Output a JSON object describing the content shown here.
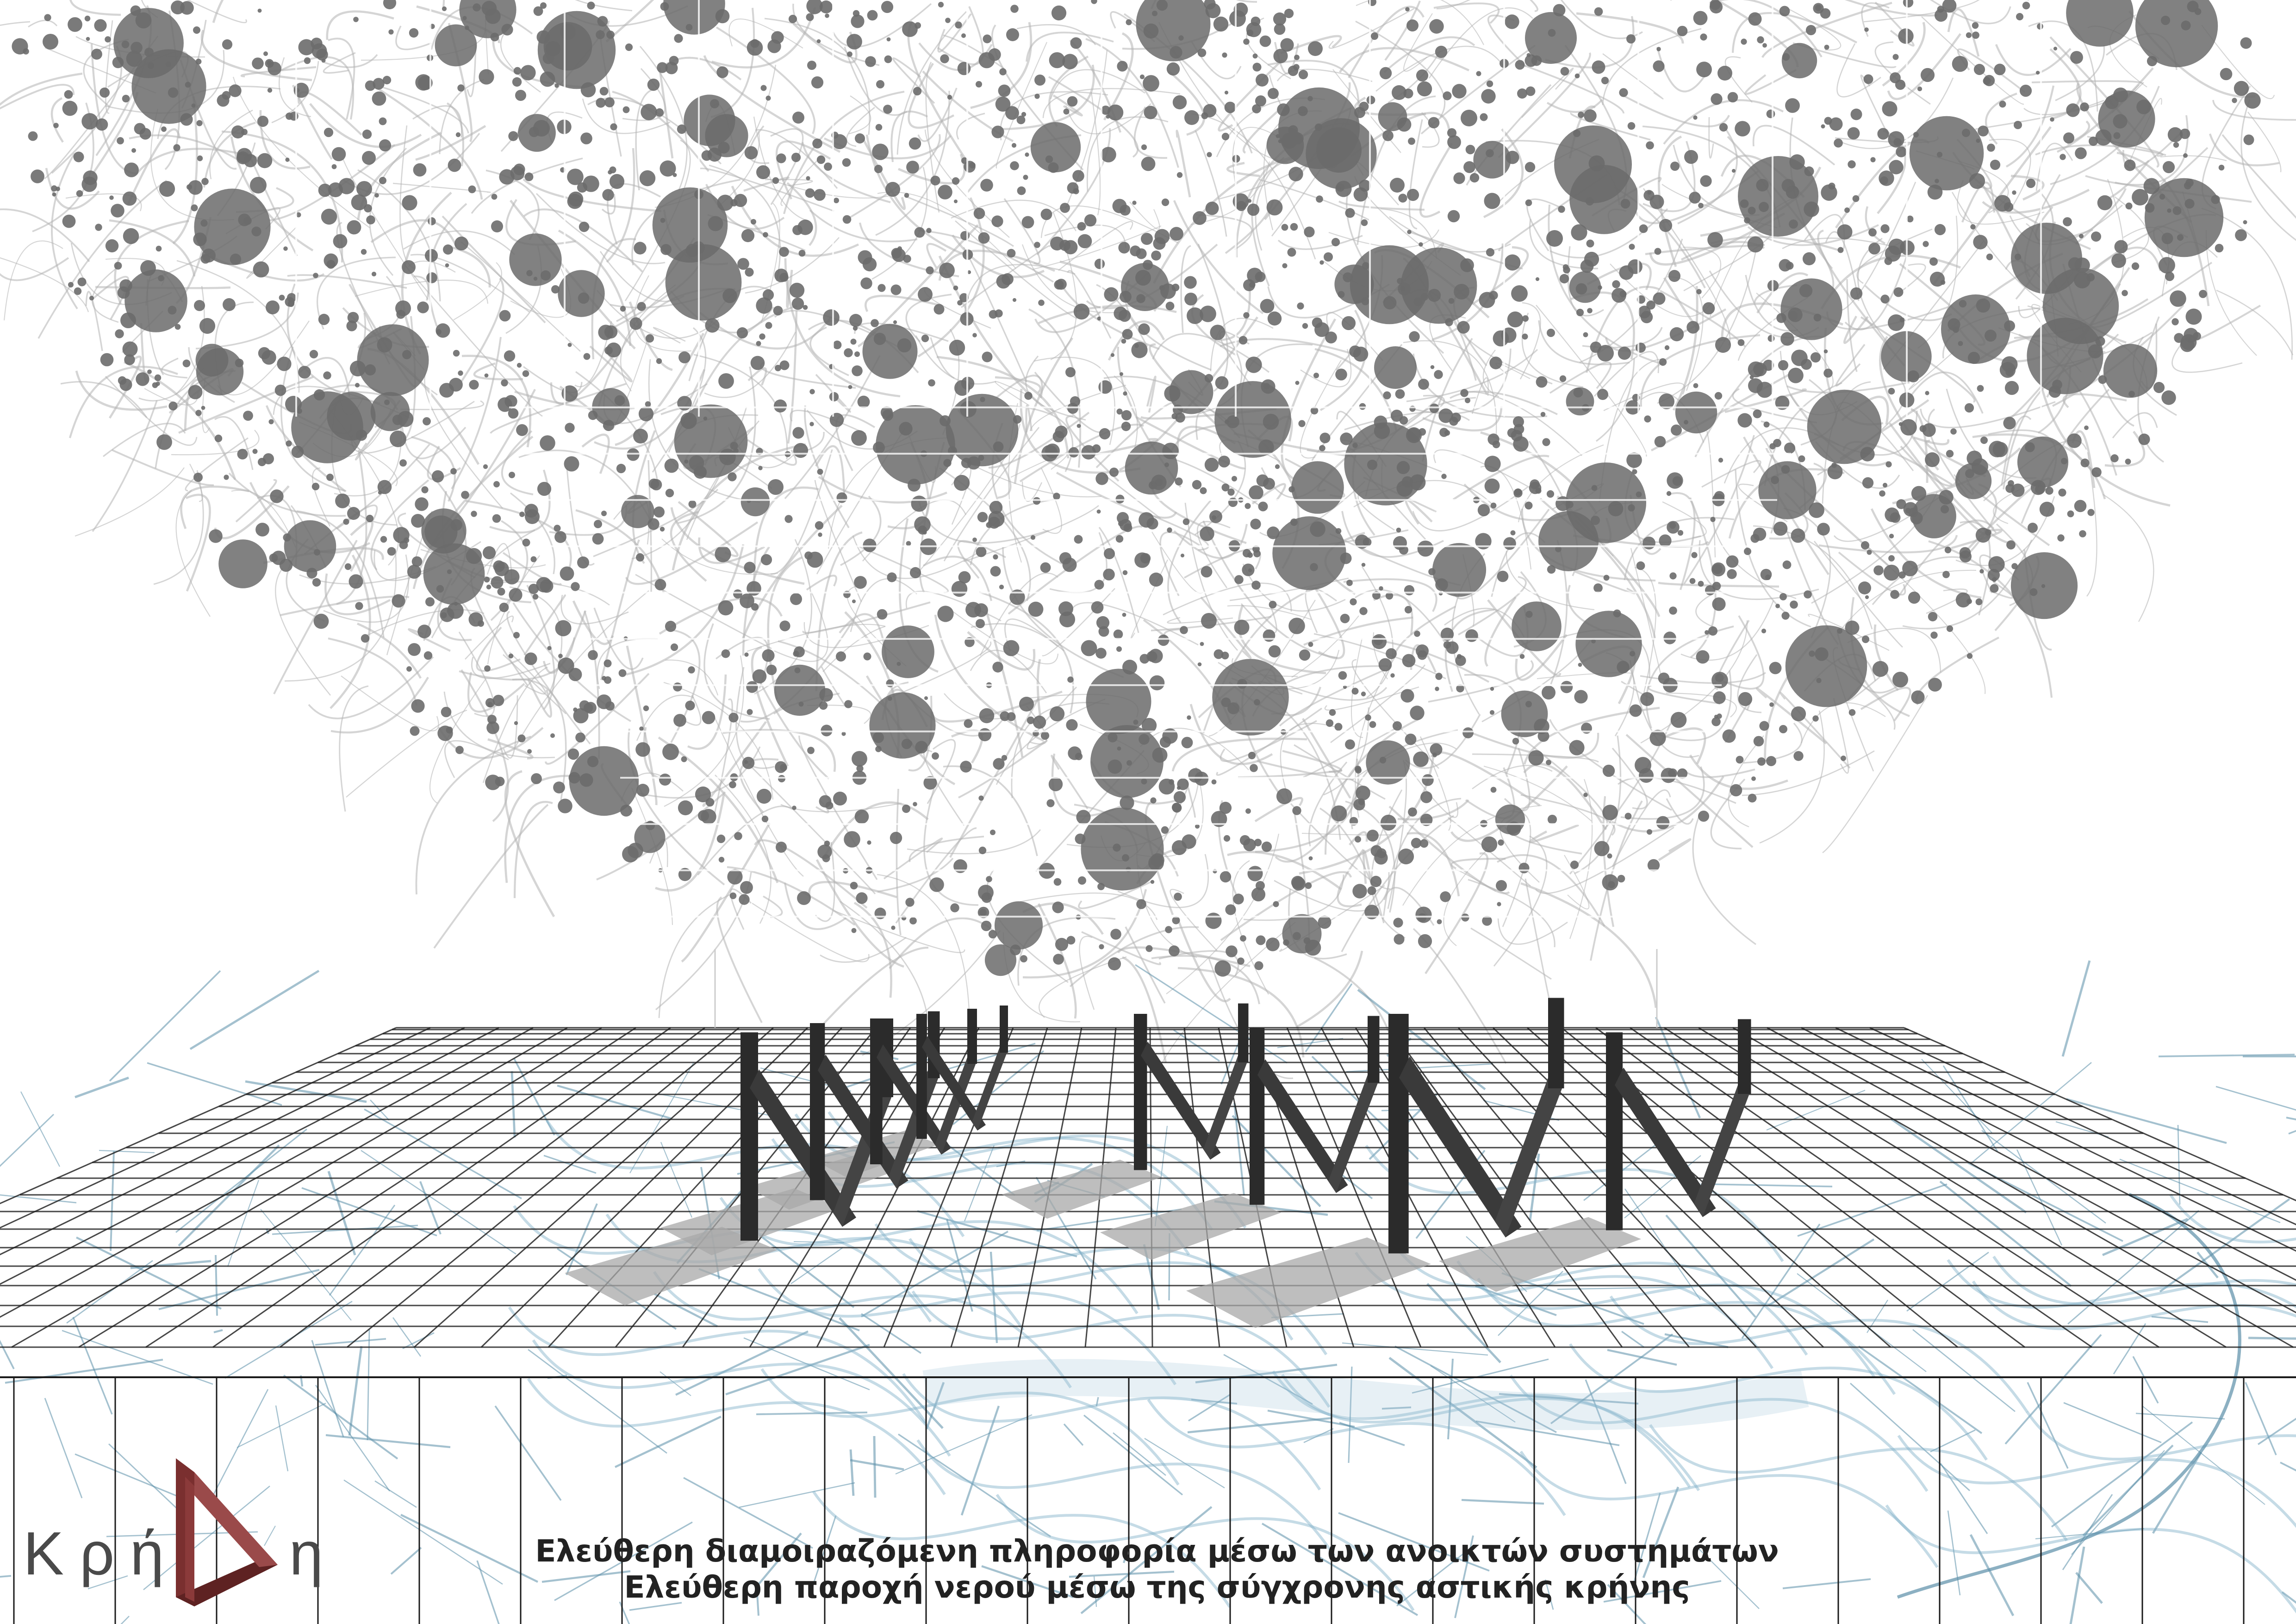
{
  "logo": {
    "text_left": "Κρή",
    "text_right": "η",
    "mark_color": "#7a2f2f"
  },
  "captions": {
    "line1": "Ελεύθερη διαμοιραζόμενη πληροφορία μέσω των ανοικτών συστημάτων",
    "line2": "Ελεύθερη παροχή νερού μέσω της σύγχρονης αστικής  κρήνης"
  },
  "colors": {
    "network_nodes": "#6b6b6b",
    "network_lines": "#b3b3b3",
    "grid_lines": "#1a1a1a",
    "water_lines": "#5b8fa8",
    "fountain_structures": "#2b2b2b",
    "shadows": "#a8a8a8"
  }
}
